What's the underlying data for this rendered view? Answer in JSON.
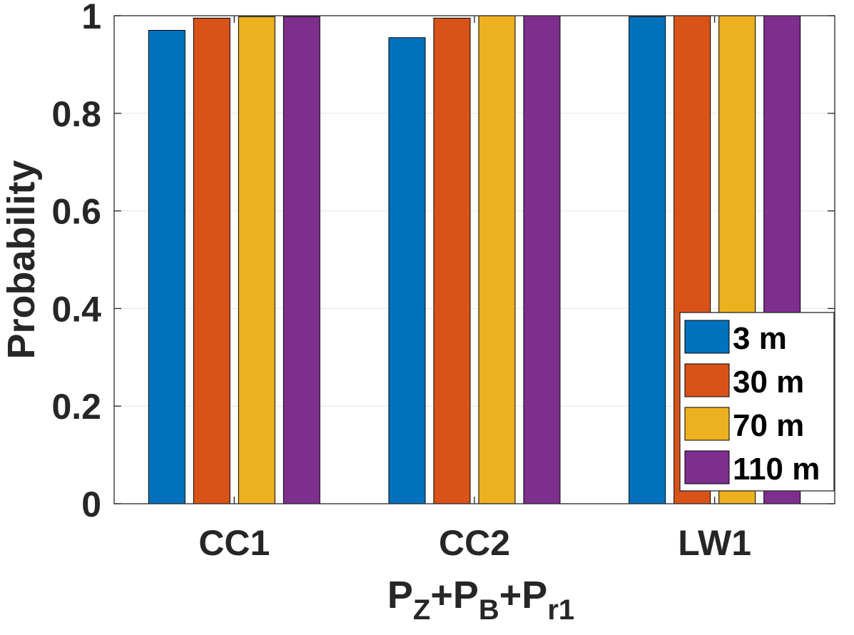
{
  "chart_data": {
    "type": "bar",
    "title": "",
    "categories": [
      "CC1",
      "CC2",
      "LW1"
    ],
    "series": [
      {
        "name": "3 m",
        "color": "#0072BD",
        "values": [
          0.97,
          0.955,
          0.998
        ]
      },
      {
        "name": "30 m",
        "color": "#D95319",
        "values": [
          0.995,
          0.995,
          1.0
        ]
      },
      {
        "name": "70 m",
        "color": "#EDB120",
        "values": [
          0.998,
          1.0,
          1.0
        ]
      },
      {
        "name": "110 m",
        "color": "#7E2F8E",
        "values": [
          0.998,
          1.0,
          1.0
        ]
      }
    ],
    "ylabel": "Probability",
    "xlabel": {
      "main": "P",
      "parts": [
        {
          "prefix": "P",
          "sub": "Z"
        },
        {
          "prefix": "+P",
          "sub": "B"
        },
        {
          "prefix": "+P",
          "sub": "r1"
        }
      ]
    },
    "ylim": [
      0,
      1
    ],
    "yticks": [
      0,
      0.2,
      0.4,
      0.6,
      0.8,
      1
    ],
    "ytick_labels": [
      "0",
      "0.2",
      "0.4",
      "0.6",
      "0.8",
      "1"
    ],
    "grid": true,
    "legend_position": "bottom-right"
  }
}
